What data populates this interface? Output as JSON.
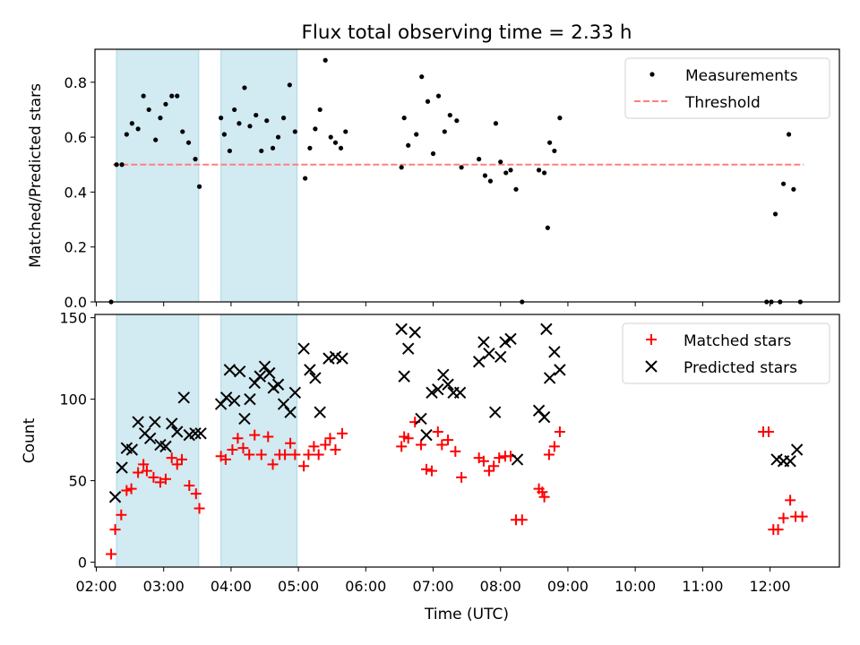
{
  "title": "Flux total observing time = 2.33 h",
  "xlabel": "Time (UTC)",
  "colors": {
    "shade": "#add8e6",
    "threshold": "#ff7f7f",
    "matched": "#ff0000",
    "predicted": "#000000",
    "measure": "#000000"
  },
  "chart_data": [
    {
      "type": "scatter",
      "panel": "top",
      "ylabel": "Matched/Predicted stars",
      "xlim": [
        1.98,
        13.03
      ],
      "ylim": [
        0,
        0.92
      ],
      "yticks": [
        0.0,
        0.2,
        0.4,
        0.6,
        0.8
      ],
      "ytick_labels": [
        "0.0",
        "0.2",
        "0.4",
        "0.6",
        "0.8"
      ],
      "shaded_intervals": [
        [
          2.3,
          3.52
        ],
        [
          3.85,
          4.98
        ]
      ],
      "legend": {
        "position": "top-right",
        "entries": [
          "Measurements",
          "Threshold"
        ]
      },
      "threshold": {
        "name": "Threshold",
        "x": [
          2.25,
          12.5
        ],
        "y": 0.5
      },
      "series": [
        {
          "name": "Measurements",
          "marker": "dot",
          "points": [
            [
              2.22,
              0.0
            ],
            [
              2.3,
              0.5
            ],
            [
              2.38,
              0.5
            ],
            [
              2.45,
              0.61
            ],
            [
              2.53,
              0.65
            ],
            [
              2.62,
              0.63
            ],
            [
              2.7,
              0.75
            ],
            [
              2.78,
              0.7
            ],
            [
              2.88,
              0.59
            ],
            [
              2.95,
              0.67
            ],
            [
              3.03,
              0.72
            ],
            [
              3.12,
              0.75
            ],
            [
              3.2,
              0.75
            ],
            [
              3.28,
              0.62
            ],
            [
              3.37,
              0.58
            ],
            [
              3.47,
              0.52
            ],
            [
              3.53,
              0.42
            ],
            [
              3.85,
              0.67
            ],
            [
              3.9,
              0.61
            ],
            [
              3.98,
              0.55
            ],
            [
              4.05,
              0.7
            ],
            [
              4.12,
              0.65
            ],
            [
              4.2,
              0.78
            ],
            [
              4.28,
              0.64
            ],
            [
              4.37,
              0.68
            ],
            [
              4.45,
              0.55
            ],
            [
              4.53,
              0.66
            ],
            [
              4.62,
              0.56
            ],
            [
              4.7,
              0.6
            ],
            [
              4.78,
              0.67
            ],
            [
              4.87,
              0.79
            ],
            [
              4.95,
              0.62
            ],
            [
              5.1,
              0.45
            ],
            [
              5.17,
              0.56
            ],
            [
              5.25,
              0.63
            ],
            [
              5.32,
              0.7
            ],
            [
              5.4,
              0.88
            ],
            [
              5.48,
              0.6
            ],
            [
              5.55,
              0.58
            ],
            [
              5.63,
              0.56
            ],
            [
              5.7,
              0.62
            ],
            [
              6.53,
              0.49
            ],
            [
              6.57,
              0.67
            ],
            [
              6.63,
              0.57
            ],
            [
              6.75,
              0.61
            ],
            [
              6.83,
              0.82
            ],
            [
              6.92,
              0.73
            ],
            [
              7.0,
              0.54
            ],
            [
              7.08,
              0.75
            ],
            [
              7.17,
              0.62
            ],
            [
              7.25,
              0.68
            ],
            [
              7.35,
              0.66
            ],
            [
              7.42,
              0.49
            ],
            [
              7.68,
              0.52
            ],
            [
              7.77,
              0.46
            ],
            [
              7.85,
              0.44
            ],
            [
              7.93,
              0.65
            ],
            [
              8.0,
              0.51
            ],
            [
              8.08,
              0.47
            ],
            [
              8.15,
              0.48
            ],
            [
              8.23,
              0.41
            ],
            [
              8.32,
              0.0
            ],
            [
              8.57,
              0.48
            ],
            [
              8.65,
              0.47
            ],
            [
              8.7,
              0.27
            ],
            [
              8.73,
              0.58
            ],
            [
              8.8,
              0.55
            ],
            [
              8.88,
              0.67
            ],
            [
              11.95,
              0.0
            ],
            [
              12.02,
              0.0
            ],
            [
              12.08,
              0.32
            ],
            [
              12.15,
              0.0
            ],
            [
              12.2,
              0.43
            ],
            [
              12.28,
              0.61
            ],
            [
              12.35,
              0.41
            ],
            [
              12.45,
              0.0
            ]
          ]
        }
      ]
    },
    {
      "type": "scatter",
      "panel": "bottom",
      "ylabel": "Count",
      "xlabel": "Time (UTC)",
      "xlim": [
        1.98,
        13.03
      ],
      "ylim": [
        -3,
        152
      ],
      "xticks": [
        2,
        3,
        4,
        5,
        6,
        7,
        8,
        9,
        10,
        11,
        12
      ],
      "xtick_labels": [
        "02:00",
        "03:00",
        "04:00",
        "05:00",
        "06:00",
        "07:00",
        "08:00",
        "09:00",
        "10:00",
        "11:00",
        "12:00"
      ],
      "yticks": [
        0,
        50,
        100,
        150
      ],
      "ytick_labels": [
        "0",
        "50",
        "100",
        "150"
      ],
      "shaded_intervals": [
        [
          2.3,
          3.52
        ],
        [
          3.85,
          4.98
        ]
      ],
      "legend": {
        "position": "top-right",
        "entries": [
          "Matched stars",
          "Predicted stars"
        ]
      },
      "series": [
        {
          "name": "Matched stars",
          "marker": "plus",
          "points": [
            [
              2.22,
              5
            ],
            [
              2.28,
              20
            ],
            [
              2.37,
              29
            ],
            [
              2.45,
              44
            ],
            [
              2.52,
              45
            ],
            [
              2.62,
              55
            ],
            [
              2.7,
              60
            ],
            [
              2.75,
              56
            ],
            [
              2.85,
              52
            ],
            [
              2.95,
              49
            ],
            [
              3.03,
              51
            ],
            [
              3.12,
              64
            ],
            [
              3.2,
              60
            ],
            [
              3.27,
              63
            ],
            [
              3.38,
              47
            ],
            [
              3.48,
              42
            ],
            [
              3.53,
              33
            ],
            [
              3.85,
              65
            ],
            [
              3.92,
              63
            ],
            [
              4.02,
              69
            ],
            [
              4.1,
              76
            ],
            [
              4.18,
              70
            ],
            [
              4.27,
              66
            ],
            [
              4.35,
              78
            ],
            [
              4.45,
              66
            ],
            [
              4.55,
              77
            ],
            [
              4.62,
              60
            ],
            [
              4.72,
              66
            ],
            [
              4.8,
              66
            ],
            [
              4.88,
              73
            ],
            [
              4.95,
              66
            ],
            [
              5.08,
              59
            ],
            [
              5.15,
              66
            ],
            [
              5.23,
              71
            ],
            [
              5.3,
              66
            ],
            [
              5.4,
              72
            ],
            [
              5.47,
              76
            ],
            [
              5.55,
              69
            ],
            [
              5.65,
              79
            ],
            [
              6.53,
              71
            ],
            [
              6.57,
              77
            ],
            [
              6.63,
              76
            ],
            [
              6.73,
              86
            ],
            [
              6.82,
              72
            ],
            [
              6.9,
              57
            ],
            [
              6.98,
              56
            ],
            [
              7.07,
              80
            ],
            [
              7.13,
              72
            ],
            [
              7.22,
              75
            ],
            [
              7.33,
              68
            ],
            [
              7.42,
              52
            ],
            [
              7.68,
              64
            ],
            [
              7.75,
              62
            ],
            [
              7.83,
              56
            ],
            [
              7.9,
              59
            ],
            [
              7.98,
              64
            ],
            [
              8.07,
              65
            ],
            [
              8.15,
              65
            ],
            [
              8.23,
              26
            ],
            [
              8.32,
              26
            ],
            [
              8.57,
              45
            ],
            [
              8.62,
              43
            ],
            [
              8.65,
              40
            ],
            [
              8.72,
              66
            ],
            [
              8.8,
              71
            ],
            [
              8.88,
              80
            ],
            [
              11.9,
              80
            ],
            [
              11.98,
              80
            ],
            [
              12.05,
              20
            ],
            [
              12.12,
              20
            ],
            [
              12.2,
              27
            ],
            [
              12.3,
              38
            ],
            [
              12.38,
              28
            ],
            [
              12.48,
              28
            ]
          ]
        },
        {
          "name": "Predicted stars",
          "marker": "x",
          "points": [
            [
              2.28,
              40
            ],
            [
              2.38,
              58
            ],
            [
              2.45,
              70
            ],
            [
              2.53,
              69
            ],
            [
              2.62,
              86
            ],
            [
              2.72,
              79
            ],
            [
              2.8,
              76
            ],
            [
              2.87,
              86
            ],
            [
              2.95,
              72
            ],
            [
              3.03,
              71
            ],
            [
              3.12,
              85
            ],
            [
              3.2,
              80
            ],
            [
              3.3,
              101
            ],
            [
              3.38,
              78
            ],
            [
              3.47,
              79
            ],
            [
              3.55,
              79
            ],
            [
              3.85,
              97
            ],
            [
              3.93,
              101
            ],
            [
              3.98,
              118
            ],
            [
              4.05,
              99
            ],
            [
              4.13,
              117
            ],
            [
              4.2,
              88
            ],
            [
              4.28,
              100
            ],
            [
              4.35,
              110
            ],
            [
              4.43,
              114
            ],
            [
              4.5,
              120
            ],
            [
              4.57,
              116
            ],
            [
              4.63,
              107
            ],
            [
              4.7,
              109
            ],
            [
              4.78,
              97
            ],
            [
              4.88,
              92
            ],
            [
              4.95,
              104
            ],
            [
              5.08,
              131
            ],
            [
              5.17,
              118
            ],
            [
              5.25,
              113
            ],
            [
              5.32,
              92
            ],
            [
              5.45,
              125
            ],
            [
              5.55,
              126
            ],
            [
              5.65,
              125
            ],
            [
              6.53,
              143
            ],
            [
              6.57,
              114
            ],
            [
              6.63,
              131
            ],
            [
              6.73,
              141
            ],
            [
              6.82,
              88
            ],
            [
              6.9,
              78
            ],
            [
              6.98,
              104
            ],
            [
              7.07,
              106
            ],
            [
              7.15,
              115
            ],
            [
              7.22,
              109
            ],
            [
              7.3,
              104
            ],
            [
              7.4,
              104
            ],
            [
              7.68,
              123
            ],
            [
              7.75,
              135
            ],
            [
              7.83,
              128
            ],
            [
              7.92,
              92
            ],
            [
              8.0,
              126
            ],
            [
              8.07,
              135
            ],
            [
              8.15,
              137
            ],
            [
              8.25,
              63
            ],
            [
              8.57,
              93
            ],
            [
              8.65,
              89
            ],
            [
              8.68,
              143
            ],
            [
              8.73,
              113
            ],
            [
              8.8,
              129
            ],
            [
              8.88,
              118
            ],
            [
              12.1,
              63
            ],
            [
              12.2,
              62
            ],
            [
              12.3,
              62
            ],
            [
              12.4,
              69
            ]
          ]
        }
      ]
    }
  ]
}
